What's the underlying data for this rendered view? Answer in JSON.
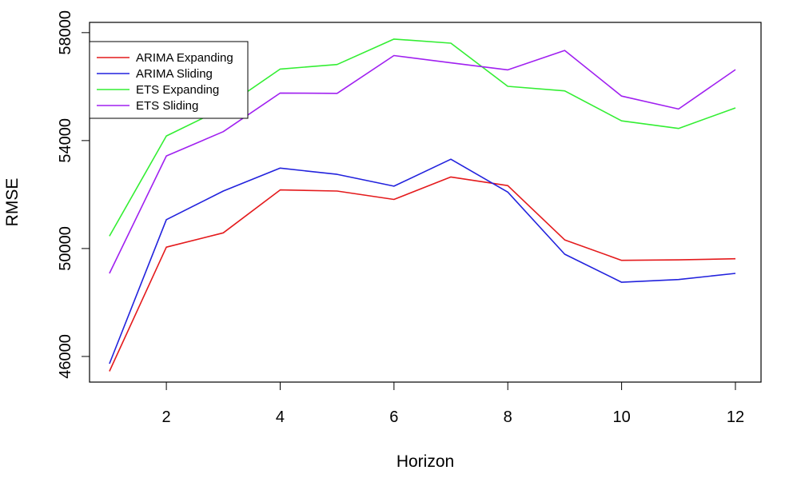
{
  "chart_data": {
    "type": "line",
    "title": "",
    "xlabel": "Horizon",
    "ylabel": "RMSE",
    "x": [
      1,
      2,
      3,
      4,
      5,
      6,
      7,
      8,
      9,
      10,
      11,
      12
    ],
    "xlim": [
      0.65,
      12.45
    ],
    "ylim": [
      45050,
      58380
    ],
    "xticks": [
      2,
      4,
      6,
      8,
      10,
      12
    ],
    "xtick_labels": [
      "2",
      "4",
      "6",
      "8",
      "10",
      "12"
    ],
    "yticks": [
      46000,
      50000,
      54000,
      58000
    ],
    "ytick_labels": [
      "46000",
      "50000",
      "54000",
      "58000"
    ],
    "grid": false,
    "legend_position": "top-left",
    "series": [
      {
        "name": "ARIMA Expanding",
        "color": "#e41a1c",
        "values": [
          45450,
          50050,
          50580,
          52170,
          52130,
          51820,
          52650,
          52330,
          50320,
          49560,
          49580,
          49620
        ]
      },
      {
        "name": "ARIMA Sliding",
        "color": "#2222dd",
        "values": [
          45730,
          51070,
          52130,
          52980,
          52750,
          52310,
          53310,
          52090,
          49790,
          48750,
          48850,
          49080
        ]
      },
      {
        "name": "ETS Expanding",
        "color": "#33ee33",
        "values": [
          50460,
          54170,
          55200,
          56650,
          56820,
          57760,
          57610,
          56010,
          55840,
          54730,
          54450,
          55210
        ]
      },
      {
        "name": "ETS Sliding",
        "color": "#a020f0",
        "values": [
          49080,
          53430,
          54330,
          55760,
          55750,
          57150,
          56880,
          56620,
          57340,
          55650,
          55170,
          56630
        ]
      }
    ]
  }
}
